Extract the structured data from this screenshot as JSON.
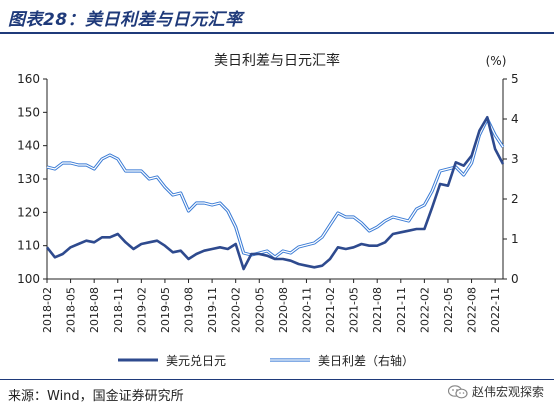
{
  "figure": {
    "title": "图表28：美日利差与日元汇率",
    "source": "来源：Wind，国金证券研究所",
    "watermark": "赵伟宏观探索"
  },
  "chart_data": {
    "type": "line",
    "title": "美日利差与日元汇率",
    "right_unit": "(%)",
    "x_ticks": [
      "2018-02",
      "2018-05",
      "2018-08",
      "2018-11",
      "2019-02",
      "2019-05",
      "2019-08",
      "2019-11",
      "2020-02",
      "2020-05",
      "2020-08",
      "2020-11",
      "2021-02",
      "2021-05",
      "2021-08",
      "2021-11",
      "2022-02",
      "2022-05",
      "2022-08",
      "2022-11"
    ],
    "left_axis": {
      "min": 100,
      "max": 160,
      "ticks": [
        100,
        110,
        120,
        130,
        140,
        150,
        160
      ]
    },
    "right_axis": {
      "min": 0,
      "max": 5,
      "ticks": [
        0,
        1,
        2,
        3,
        4,
        5
      ]
    },
    "legend_position": "bottom",
    "series": [
      {
        "name": "美元兑日元",
        "axis": "left",
        "color": "#2e4a8e",
        "points": [
          [
            "2018-02",
            109.5
          ],
          [
            "2018-03",
            106.5
          ],
          [
            "2018-04",
            107.5
          ],
          [
            "2018-05",
            109.5
          ],
          [
            "2018-06",
            110.5
          ],
          [
            "2018-07",
            111.5
          ],
          [
            "2018-08",
            111.0
          ],
          [
            "2018-09",
            112.5
          ],
          [
            "2018-10",
            112.5
          ],
          [
            "2018-11",
            113.5
          ],
          [
            "2018-12",
            111.0
          ],
          [
            "2019-01",
            109.0
          ],
          [
            "2019-02",
            110.5
          ],
          [
            "2019-03",
            111.0
          ],
          [
            "2019-04",
            111.5
          ],
          [
            "2019-05",
            110.0
          ],
          [
            "2019-06",
            108.0
          ],
          [
            "2019-07",
            108.5
          ],
          [
            "2019-08",
            106.0
          ],
          [
            "2019-09",
            107.5
          ],
          [
            "2019-10",
            108.5
          ],
          [
            "2019-11",
            109.0
          ],
          [
            "2019-12",
            109.5
          ],
          [
            "2020-01",
            109.0
          ],
          [
            "2020-02",
            110.5
          ],
          [
            "2020-03",
            103.0
          ],
          [
            "2020-04",
            107.5
          ],
          [
            "2020-05",
            107.5
          ],
          [
            "2020-06",
            107.0
          ],
          [
            "2020-07",
            106.0
          ],
          [
            "2020-08",
            106.0
          ],
          [
            "2020-09",
            105.5
          ],
          [
            "2020-10",
            104.5
          ],
          [
            "2020-11",
            104.0
          ],
          [
            "2020-12",
            103.5
          ],
          [
            "2021-01",
            104.0
          ],
          [
            "2021-02",
            106.0
          ],
          [
            "2021-03",
            109.5
          ],
          [
            "2021-04",
            109.0
          ],
          [
            "2021-05",
            109.5
          ],
          [
            "2021-06",
            110.5
          ],
          [
            "2021-07",
            110.0
          ],
          [
            "2021-08",
            110.0
          ],
          [
            "2021-09",
            111.0
          ],
          [
            "2021-10",
            113.5
          ],
          [
            "2021-11",
            114.0
          ],
          [
            "2021-12",
            114.5
          ],
          [
            "2022-01",
            115.0
          ],
          [
            "2022-02",
            115.0
          ],
          [
            "2022-03",
            121.5
          ],
          [
            "2022-04",
            128.5
          ],
          [
            "2022-05",
            128.0
          ],
          [
            "2022-06",
            135.0
          ],
          [
            "2022-07",
            134.0
          ],
          [
            "2022-08",
            137.0
          ],
          [
            "2022-09",
            144.5
          ],
          [
            "2022-10",
            148.5
          ],
          [
            "2022-11",
            139.0
          ],
          [
            "2022-12",
            134.5
          ]
        ]
      },
      {
        "name": "美日利差（右轴）",
        "axis": "right",
        "color": "#3a7bd5",
        "points": [
          [
            "2018-02",
            2.8
          ],
          [
            "2018-03",
            2.75
          ],
          [
            "2018-04",
            2.9
          ],
          [
            "2018-05",
            2.9
          ],
          [
            "2018-06",
            2.85
          ],
          [
            "2018-07",
            2.85
          ],
          [
            "2018-08",
            2.75
          ],
          [
            "2018-09",
            3.0
          ],
          [
            "2018-10",
            3.1
          ],
          [
            "2018-11",
            3.0
          ],
          [
            "2018-12",
            2.7
          ],
          [
            "2019-01",
            2.7
          ],
          [
            "2019-02",
            2.7
          ],
          [
            "2019-03",
            2.5
          ],
          [
            "2019-04",
            2.55
          ],
          [
            "2019-05",
            2.3
          ],
          [
            "2019-06",
            2.1
          ],
          [
            "2019-07",
            2.15
          ],
          [
            "2019-08",
            1.7
          ],
          [
            "2019-09",
            1.9
          ],
          [
            "2019-10",
            1.9
          ],
          [
            "2019-11",
            1.85
          ],
          [
            "2019-12",
            1.9
          ],
          [
            "2020-01",
            1.7
          ],
          [
            "2020-02",
            1.3
          ],
          [
            "2020-03",
            0.65
          ],
          [
            "2020-04",
            0.6
          ],
          [
            "2020-05",
            0.65
          ],
          [
            "2020-06",
            0.7
          ],
          [
            "2020-07",
            0.55
          ],
          [
            "2020-08",
            0.7
          ],
          [
            "2020-09",
            0.65
          ],
          [
            "2020-10",
            0.8
          ],
          [
            "2020-11",
            0.85
          ],
          [
            "2020-12",
            0.9
          ],
          [
            "2021-01",
            1.05
          ],
          [
            "2021-02",
            1.35
          ],
          [
            "2021-03",
            1.65
          ],
          [
            "2021-04",
            1.55
          ],
          [
            "2021-05",
            1.55
          ],
          [
            "2021-06",
            1.4
          ],
          [
            "2021-07",
            1.2
          ],
          [
            "2021-08",
            1.3
          ],
          [
            "2021-09",
            1.45
          ],
          [
            "2021-10",
            1.55
          ],
          [
            "2021-11",
            1.5
          ],
          [
            "2021-12",
            1.45
          ],
          [
            "2022-01",
            1.75
          ],
          [
            "2022-02",
            1.85
          ],
          [
            "2022-03",
            2.2
          ],
          [
            "2022-04",
            2.7
          ],
          [
            "2022-05",
            2.75
          ],
          [
            "2022-06",
            2.8
          ],
          [
            "2022-07",
            2.6
          ],
          [
            "2022-08",
            2.9
          ],
          [
            "2022-09",
            3.6
          ],
          [
            "2022-10",
            4.0
          ],
          [
            "2022-11",
            3.6
          ],
          [
            "2022-12",
            3.3
          ]
        ]
      }
    ]
  }
}
